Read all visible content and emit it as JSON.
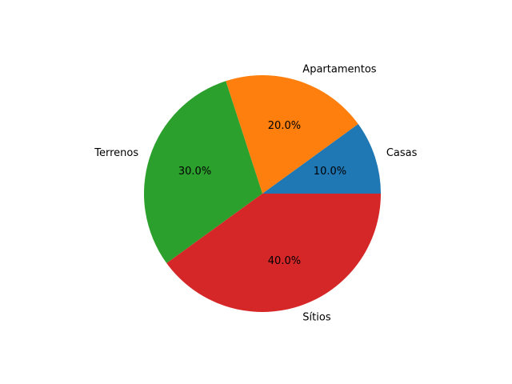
{
  "chart_data": {
    "type": "pie",
    "title": "",
    "categories": [
      "Casas",
      "Apartamentos",
      "Terrenos",
      "Sítios"
    ],
    "values": [
      10,
      20,
      30,
      40
    ],
    "percent_labels": [
      "10.0%",
      "20.0%",
      "30.0%",
      "40.0%"
    ],
    "colors": [
      "#1f77b4",
      "#ff7f0e",
      "#2ca02c",
      "#d62728"
    ],
    "start_angle_deg": 0,
    "direction": "counterclockwise",
    "legend": "none"
  }
}
